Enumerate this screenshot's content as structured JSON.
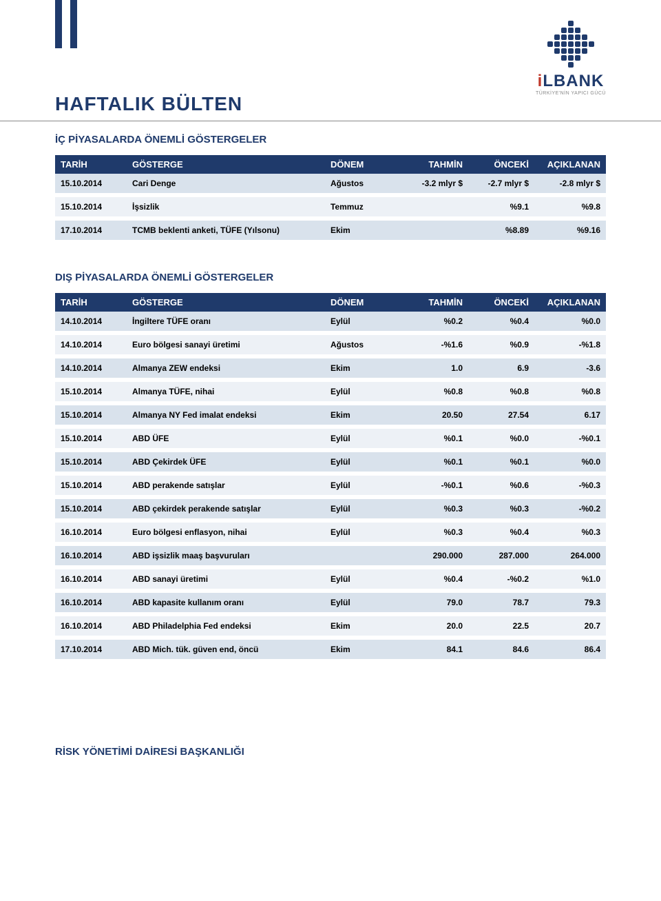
{
  "theme": {
    "primary_color": "#1f3a6b",
    "accent_color": "#c0392b",
    "row_odd": "#d9e2ec",
    "row_even": "#edf1f6",
    "text_color": "#000000",
    "background": "#ffffff"
  },
  "logo": {
    "brand": "LBANK",
    "brand_prefix": "i",
    "tagline": "TÜRKİYE'NİN YAPICI GÜCÜ"
  },
  "title": "HAFTALIK BÜLTEN",
  "section1": {
    "title": "İÇ PİYASALARDA ÖNEMLİ GÖSTERGELER",
    "headers": {
      "tarih": "TARİH",
      "gosterge": "GÖSTERGE",
      "donem": "DÖNEM",
      "tahmin": "TAHMİN",
      "onceki": "ÖNCEKİ",
      "aciklanan": "AÇIKLANAN"
    },
    "rows": [
      {
        "tarih": "15.10.2014",
        "gosterge": "Cari Denge",
        "donem": "Ağustos",
        "tahmin": "-3.2 mlyr $",
        "onceki": "-2.7 mlyr $",
        "aciklanan": "-2.8 mlyr $"
      },
      {
        "tarih": "15.10.2014",
        "gosterge": "İşsizlik",
        "donem": "Temmuz",
        "tahmin": "",
        "onceki": "%9.1",
        "aciklanan": "%9.8"
      },
      {
        "tarih": "17.10.2014",
        "gosterge": "TCMB beklenti anketi, TÜFE (Yılsonu)",
        "donem": "Ekim",
        "tahmin": "",
        "onceki": "%8.89",
        "aciklanan": "%9.16"
      }
    ]
  },
  "section2": {
    "title": "DIŞ PİYASALARDA ÖNEMLİ GÖSTERGELER",
    "headers": {
      "tarih": "TARİH",
      "gosterge": "GÖSTERGE",
      "donem": "DÖNEM",
      "tahmin": "TAHMİN",
      "onceki": "ÖNCEKİ",
      "aciklanan": "AÇIKLANAN"
    },
    "rows": [
      {
        "tarih": "14.10.2014",
        "gosterge": "İngiltere TÜFE oranı",
        "donem": "Eylül",
        "tahmin": "%0.2",
        "onceki": "%0.4",
        "aciklanan": "%0.0"
      },
      {
        "tarih": "14.10.2014",
        "gosterge": "Euro bölgesi sanayi üretimi",
        "donem": "Ağustos",
        "tahmin": "-%1.6",
        "onceki": "%0.9",
        "aciklanan": "-%1.8"
      },
      {
        "tarih": "14.10.2014",
        "gosterge": "Almanya ZEW endeksi",
        "donem": "Ekim",
        "tahmin": "1.0",
        "onceki": "6.9",
        "aciklanan": "-3.6"
      },
      {
        "tarih": "15.10.2014",
        "gosterge": "Almanya TÜFE, nihai",
        "donem": "Eylül",
        "tahmin": "%0.8",
        "onceki": "%0.8",
        "aciklanan": "%0.8"
      },
      {
        "tarih": "15.10.2014",
        "gosterge": "Almanya NY Fed imalat endeksi",
        "donem": "Ekim",
        "tahmin": "20.50",
        "onceki": "27.54",
        "aciklanan": "6.17"
      },
      {
        "tarih": "15.10.2014",
        "gosterge": "ABD ÜFE",
        "donem": "Eylül",
        "tahmin": "%0.1",
        "onceki": "%0.0",
        "aciklanan": "-%0.1"
      },
      {
        "tarih": "15.10.2014",
        "gosterge": "ABD Çekirdek ÜFE",
        "donem": "Eylül",
        "tahmin": "%0.1",
        "onceki": "%0.1",
        "aciklanan": "%0.0"
      },
      {
        "tarih": "15.10.2014",
        "gosterge": "ABD perakende satışlar",
        "donem": "Eylül",
        "tahmin": "-%0.1",
        "onceki": "%0.6",
        "aciklanan": "-%0.3"
      },
      {
        "tarih": "15.10.2014",
        "gosterge": "ABD çekirdek perakende satışlar",
        "donem": "Eylül",
        "tahmin": "%0.3",
        "onceki": "%0.3",
        "aciklanan": "-%0.2"
      },
      {
        "tarih": "16.10.2014",
        "gosterge": "Euro bölgesi enflasyon, nihai",
        "donem": "Eylül",
        "tahmin": "%0.3",
        "onceki": "%0.4",
        "aciklanan": "%0.3"
      },
      {
        "tarih": "16.10.2014",
        "gosterge": "ABD işsizlik maaş başvuruları",
        "donem": "",
        "tahmin": "290.000",
        "onceki": "287.000",
        "aciklanan": "264.000"
      },
      {
        "tarih": "16.10.2014",
        "gosterge": "ABD sanayi üretimi",
        "donem": "Eylül",
        "tahmin": "%0.4",
        "onceki": "-%0.2",
        "aciklanan": "%1.0"
      },
      {
        "tarih": "16.10.2014",
        "gosterge": "ABD kapasite kullanım oranı",
        "donem": "Eylül",
        "tahmin": "79.0",
        "onceki": "78.7",
        "aciklanan": "79.3"
      },
      {
        "tarih": "16.10.2014",
        "gosterge": "ABD Philadelphia Fed endeksi",
        "donem": "Ekim",
        "tahmin": "20.0",
        "onceki": "22.5",
        "aciklanan": "20.7"
      },
      {
        "tarih": "17.10.2014",
        "gosterge": "ABD Mich. tük. güven end, öncü",
        "donem": "Ekim",
        "tahmin": "84.1",
        "onceki": "84.6",
        "aciklanan": "86.4"
      }
    ]
  },
  "footer": "RİSK YÖNETİMİ DAİRESİ BAŞKANLIĞI"
}
